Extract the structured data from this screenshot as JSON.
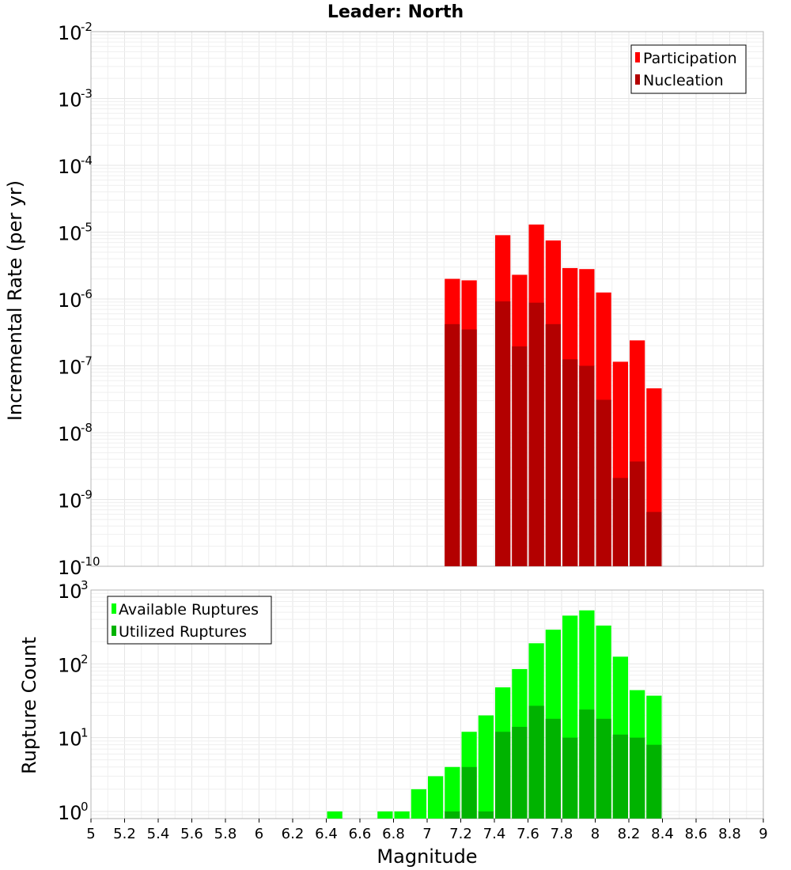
{
  "chart_data": [
    {
      "type": "bar",
      "title": "Leader: North",
      "xlabel": "Magnitude",
      "ylabel": "Incremental Rate (per yr)",
      "xlim": [
        5,
        9
      ],
      "ylim": [
        1e-10,
        0.01
      ],
      "yscale": "log",
      "grid": true,
      "legend_position": "top-right",
      "bin_width": 0.1,
      "x_ticks": [
        "5",
        "5.2",
        "5.4",
        "5.6",
        "5.8",
        "6",
        "6.2",
        "6.4",
        "6.6",
        "6.8",
        "7",
        "7.2",
        "7.4",
        "7.6",
        "7.8",
        "8",
        "8.2",
        "8.4",
        "8.6",
        "8.8",
        "9"
      ],
      "y_tick_exponents": [
        "-10",
        "-9",
        "-8",
        "-7",
        "-6",
        "-5",
        "-4",
        "-3",
        "-2"
      ],
      "y_tick_base": "10",
      "x": [
        7.15,
        7.25,
        7.45,
        7.55,
        7.65,
        7.75,
        7.85,
        7.95,
        8.05,
        8.15,
        8.25,
        8.35
      ],
      "series": [
        {
          "name": "Participation",
          "color": "#ff0000",
          "values": [
            2e-06,
            1.9e-06,
            9e-06,
            2.3e-06,
            1.3e-05,
            7.5e-06,
            2.9e-06,
            2.8e-06,
            1.25e-06,
            1.15e-07,
            2.4e-07,
            4.6e-08
          ]
        },
        {
          "name": "Nucleation",
          "color": "#b30000",
          "values": [
            4.2e-07,
            3.5e-07,
            9.2e-07,
            1.95e-07,
            8.8e-07,
            4.2e-07,
            1.25e-07,
            1e-07,
            3.1e-08,
            2.1e-09,
            3.7e-09,
            6.5e-10
          ]
        }
      ]
    },
    {
      "type": "bar",
      "xlabel": "Magnitude",
      "ylabel": "Rupture Count",
      "xlim": [
        5,
        9
      ],
      "ylim": [
        0.8,
        1000
      ],
      "yscale": "log",
      "grid": true,
      "legend_position": "top-left",
      "bin_width": 0.1,
      "x_ticks": [
        "5",
        "5.2",
        "5.4",
        "5.6",
        "5.8",
        "6",
        "6.2",
        "6.4",
        "6.6",
        "6.8",
        "7",
        "7.2",
        "7.4",
        "7.6",
        "7.8",
        "8",
        "8.2",
        "8.4",
        "8.6",
        "8.8",
        "9"
      ],
      "y_tick_exponents": [
        "0",
        "1",
        "2",
        "3"
      ],
      "y_tick_base": "10",
      "x": [
        6.45,
        6.75,
        6.85,
        6.95,
        7.05,
        7.15,
        7.25,
        7.35,
        7.45,
        7.55,
        7.65,
        7.75,
        7.85,
        7.95,
        8.05,
        8.15,
        8.25,
        8.35
      ],
      "series": [
        {
          "name": "Available Ruptures",
          "color": "#00ff00",
          "values": [
            1,
            1,
            1,
            2,
            3,
            4,
            12,
            20,
            48,
            85,
            190,
            290,
            450,
            530,
            330,
            125,
            44,
            37
          ]
        },
        {
          "name": "Utilized Ruptures",
          "color": "#00b300",
          "values": [
            0,
            0,
            0,
            0,
            0,
            1,
            4,
            1,
            12,
            14,
            27,
            18,
            10,
            24,
            18,
            11,
            10,
            8
          ]
        }
      ]
    }
  ]
}
